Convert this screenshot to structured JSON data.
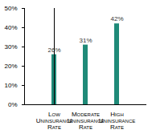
{
  "chart_data": {
    "type": "bar",
    "categories": [
      "Low Uninsurance Rate",
      "Moderate Uninsurance Rate",
      "High Uninsurance Rate"
    ],
    "values": [
      26,
      31,
      42
    ],
    "value_labels": [
      "26%",
      "31%",
      "42%"
    ],
    "color": "#1f8a78",
    "ylim": [
      0,
      50
    ],
    "yticks": [
      {
        "value": 0,
        "label": "0%"
      },
      {
        "value": 10,
        "label": "10%"
      },
      {
        "value": 20,
        "label": "20%"
      },
      {
        "value": 30,
        "label": "30%"
      },
      {
        "value": 40,
        "label": "40%"
      },
      {
        "value": 50,
        "label": "50%"
      }
    ],
    "grid": false,
    "data_labels": true
  }
}
